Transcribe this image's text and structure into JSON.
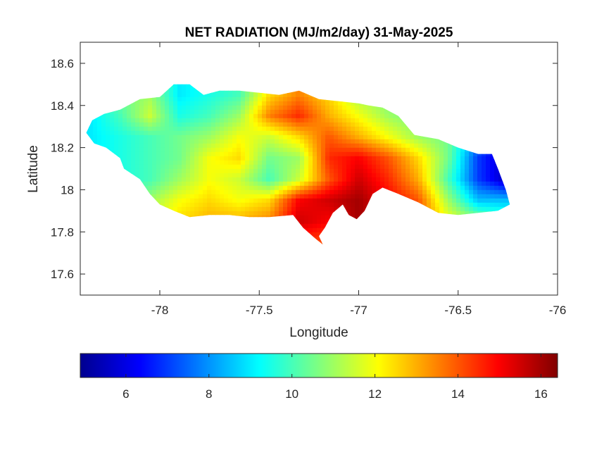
{
  "chart_data": {
    "type": "heatmap",
    "title": "NET RADIATION (MJ/m2/day) 31-May-2025",
    "xlabel": "Longitude",
    "ylabel": "Latitude",
    "xlim": [
      -78.4,
      -76
    ],
    "ylim": [
      17.5,
      18.7
    ],
    "xticks": [
      -78,
      -77.5,
      -77,
      -76.5,
      -76
    ],
    "xtick_labels": [
      "-78",
      "-77.5",
      "-77",
      "-76.5",
      "-76"
    ],
    "yticks": [
      17.6,
      17.8,
      18,
      18.2,
      18.4,
      18.6
    ],
    "ytick_labels": [
      "17.6",
      "17.8",
      "18",
      "18.2",
      "18.4",
      "18.6"
    ],
    "grid": false,
    "colormap": "jet",
    "clim": [
      4.9,
      16.4
    ],
    "colorbar": {
      "orientation": "horizontal",
      "location": "bottom",
      "ticks": [
        6,
        8,
        10,
        12,
        14,
        16
      ],
      "tick_labels": [
        "6",
        "8",
        "10",
        "12",
        "14",
        "16"
      ]
    },
    "region_outline": [
      [
        -78.37,
        18.27
      ],
      [
        -78.34,
        18.33
      ],
      [
        -78.28,
        18.36
      ],
      [
        -78.2,
        18.38
      ],
      [
        -78.1,
        18.43
      ],
      [
        -78.0,
        18.44
      ],
      [
        -77.93,
        18.5
      ],
      [
        -77.85,
        18.5
      ],
      [
        -77.78,
        18.45
      ],
      [
        -77.7,
        18.47
      ],
      [
        -77.6,
        18.47
      ],
      [
        -77.5,
        18.46
      ],
      [
        -77.4,
        18.45
      ],
      [
        -77.3,
        18.47
      ],
      [
        -77.2,
        18.43
      ],
      [
        -77.1,
        18.42
      ],
      [
        -77.0,
        18.41
      ],
      [
        -76.95,
        18.4
      ],
      [
        -76.88,
        18.39
      ],
      [
        -76.8,
        18.35
      ],
      [
        -76.72,
        18.26
      ],
      [
        -76.6,
        18.24
      ],
      [
        -76.5,
        18.2
      ],
      [
        -76.4,
        18.17
      ],
      [
        -76.33,
        18.17
      ],
      [
        -76.3,
        18.1
      ],
      [
        -76.26,
        18.0
      ],
      [
        -76.24,
        17.93
      ],
      [
        -76.3,
        17.9
      ],
      [
        -76.4,
        17.89
      ],
      [
        -76.5,
        17.88
      ],
      [
        -76.6,
        17.89
      ],
      [
        -76.7,
        17.94
      ],
      [
        -76.8,
        17.98
      ],
      [
        -76.88,
        18.01
      ],
      [
        -76.93,
        17.98
      ],
      [
        -76.97,
        17.9
      ],
      [
        -77.01,
        17.86
      ],
      [
        -77.05,
        17.88
      ],
      [
        -77.08,
        17.93
      ],
      [
        -77.13,
        17.89
      ],
      [
        -77.17,
        17.82
      ],
      [
        -77.2,
        17.78
      ],
      [
        -77.18,
        17.74
      ],
      [
        -77.22,
        17.77
      ],
      [
        -77.28,
        17.82
      ],
      [
        -77.33,
        17.88
      ],
      [
        -77.45,
        17.87
      ],
      [
        -77.55,
        17.87
      ],
      [
        -77.65,
        17.88
      ],
      [
        -77.75,
        17.88
      ],
      [
        -77.85,
        17.87
      ],
      [
        -77.93,
        17.9
      ],
      [
        -78.0,
        17.93
      ],
      [
        -78.05,
        17.98
      ],
      [
        -78.1,
        18.05
      ],
      [
        -78.18,
        18.1
      ],
      [
        -78.2,
        18.15
      ],
      [
        -78.27,
        18.2
      ],
      [
        -78.33,
        18.22
      ]
    ],
    "value_grid": {
      "lon": [
        -78.35,
        -78.2,
        -78.05,
        -77.9,
        -77.75,
        -77.6,
        -77.45,
        -77.3,
        -77.15,
        -77.0,
        -76.85,
        -76.7,
        -76.55,
        -76.4,
        -76.25
      ],
      "lat": [
        18.45,
        18.35,
        18.25,
        18.15,
        18.05,
        17.95,
        17.85,
        17.75
      ],
      "values": [
        [
          9.5,
          10.5,
          11.0,
          9.0,
          9.5,
          10.0,
          12.5,
          13.5,
          12.5,
          11.0,
          10.5,
          10.0,
          9.5,
          9.0,
          8.5
        ],
        [
          9.0,
          10.0,
          11.5,
          9.5,
          10.0,
          11.0,
          13.5,
          14.5,
          13.0,
          12.0,
          11.0,
          10.5,
          10.0,
          9.0,
          8.0
        ],
        [
          9.0,
          9.5,
          10.0,
          10.5,
          11.0,
          12.0,
          11.5,
          12.5,
          14.0,
          13.0,
          12.0,
          11.0,
          10.5,
          8.0,
          6.5
        ],
        [
          9.0,
          9.5,
          10.0,
          10.5,
          12.0,
          12.5,
          10.5,
          11.0,
          14.5,
          15.0,
          14.0,
          12.5,
          10.5,
          7.0,
          5.5
        ],
        [
          9.0,
          9.5,
          10.0,
          11.0,
          12.0,
          11.5,
          10.0,
          11.5,
          14.0,
          15.5,
          14.5,
          13.0,
          10.0,
          7.0,
          5.5
        ],
        [
          9.0,
          10.0,
          11.0,
          12.0,
          12.5,
          12.0,
          12.5,
          15.0,
          15.5,
          16.0,
          15.0,
          14.0,
          11.0,
          8.5,
          8.5
        ],
        [
          9.5,
          10.0,
          11.5,
          12.5,
          13.0,
          13.0,
          13.5,
          15.5,
          15.0,
          16.0,
          15.0,
          14.0,
          12.0,
          11.0,
          10.0
        ],
        [
          10.0,
          10.5,
          12.0,
          13.0,
          13.5,
          14.0,
          14.5,
          14.5,
          14.0,
          14.5,
          14.0,
          13.0,
          12.0,
          11.0,
          10.0
        ]
      ]
    }
  }
}
